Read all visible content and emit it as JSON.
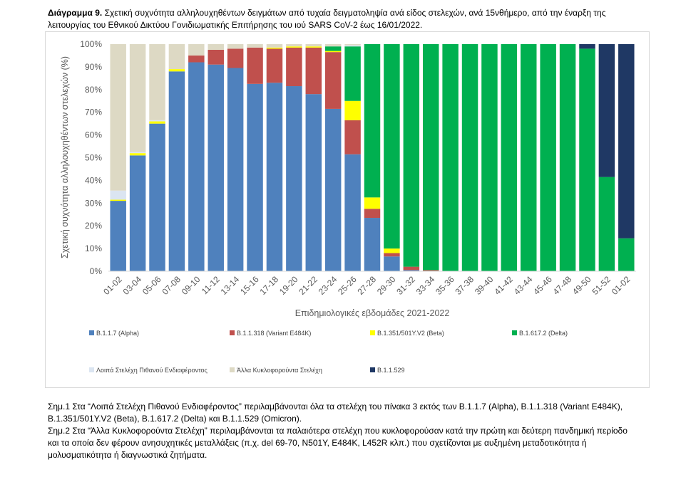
{
  "caption": {
    "label": "Διάγραμμα 9.",
    "text": "Σχετική συχνότητα αλληλουχηθέντων δειγμάτων από τυχαία δειγματοληψία ανά είδος στελεχών, ανά 15νθήμερο, από την έναρξη της λειτουργίας του Εθνικού Δικτύου Γονιδιωματικής Επιτήρησης του ιού SARS CoV-2 έως 16/01/2022."
  },
  "chart_data": {
    "type": "bar",
    "stacked": true,
    "title": "",
    "xlabel": "Επιδημιολογικές εβδομάδες 2021-2022",
    "ylabel": "Σχετική συχνότητα αλληλουχηθέντων στελεχών (%)",
    "ylim": [
      0,
      100
    ],
    "yticks": [
      "0%",
      "10%",
      "20%",
      "30%",
      "40%",
      "50%",
      "60%",
      "70%",
      "80%",
      "90%",
      "100%"
    ],
    "grid": false,
    "legend_position": "bottom",
    "categories": [
      "01-02",
      "03-04",
      "05-06",
      "07-08",
      "09-10",
      "11-12",
      "13-14",
      "15-16",
      "17-18",
      "19-20",
      "21-22",
      "23-24",
      "25-26",
      "27-28",
      "29-30",
      "31-32",
      "33-34",
      "35-36",
      "37-38",
      "39-40",
      "41-42",
      "43-44",
      "45-46",
      "47-48",
      "49-50",
      "51-52",
      "01-02"
    ],
    "series": [
      {
        "name": "B.1.1.7 (Alpha)",
        "color": "#4f81bd",
        "values": [
          31,
          51,
          65,
          88,
          92,
          91,
          89.5,
          82.5,
          83,
          81.5,
          78,
          71.5,
          51.5,
          23.5,
          6.5,
          0.5,
          0,
          0,
          0,
          0,
          0,
          0,
          0,
          0,
          0,
          0,
          0
        ]
      },
      {
        "name": "B.1.1.318 (Variant E484K)",
        "color": "#c0504d",
        "values": [
          0,
          0,
          0,
          0,
          3,
          6.5,
          8.5,
          16,
          15,
          17,
          20.5,
          25,
          15,
          4,
          1.5,
          1.5,
          0.5,
          0,
          0,
          0,
          0,
          0,
          0,
          0,
          0,
          0,
          0
        ]
      },
      {
        "name": "B.1.351/501Y.V2 (Beta)",
        "color": "#ffff00",
        "values": [
          0.5,
          1,
          1,
          1,
          0,
          0,
          0,
          0,
          0.5,
          0.5,
          0.5,
          0.5,
          8.5,
          5,
          2,
          0,
          0,
          0,
          0,
          0,
          0,
          0,
          0,
          0,
          0,
          0,
          0
        ]
      },
      {
        "name": "B.1.617.2 (Delta)",
        "color": "#00b050",
        "values": [
          0,
          0,
          0,
          0,
          0,
          0,
          0,
          0,
          0,
          0,
          0,
          2,
          24,
          67.5,
          90,
          98,
          99.5,
          100,
          100,
          100,
          100,
          100,
          100,
          100,
          98,
          41.5,
          14.5
        ]
      },
      {
        "name": "Λοιπά Στελέχη Πιθανού Ενδιαφέροντος",
        "color": "#dbe5f1",
        "values": [
          4,
          0.5,
          0.5,
          0,
          0,
          0,
          0,
          0,
          0,
          0,
          0,
          0,
          0.5,
          0,
          0,
          0,
          0,
          0,
          0,
          0,
          0,
          0,
          0,
          0,
          0,
          0,
          0
        ]
      },
      {
        "name": "Άλλα Κυκλοφορούντα Στελέχη",
        "color": "#ddd9c4",
        "values": [
          64.5,
          47.5,
          33.5,
          11,
          5,
          2.5,
          2,
          1.5,
          1.5,
          1,
          1,
          1,
          0.5,
          0,
          0,
          0,
          0,
          0,
          0,
          0,
          0,
          0,
          0,
          0,
          0,
          0,
          0
        ]
      },
      {
        "name": "B.1.1.529",
        "color": "#1f3864",
        "values": [
          0,
          0,
          0,
          0,
          0,
          0,
          0,
          0,
          0,
          0,
          0,
          0,
          0,
          0,
          0,
          0,
          0,
          0,
          0,
          0,
          0,
          0,
          0,
          0,
          2,
          58.5,
          85.5
        ]
      }
    ]
  },
  "notes": [
    "Σημ.1 Στα “Λοιπά Στελέχη Πιθανού Ενδιαφέροντος” περιλαμβάνονται όλα τα στελέχη του πίνακα 3 εκτός των B.1.1.7 (Alpha), B.1.1.318 (Variant E484K), B.1.351/501Y.V2 (Beta), B.1.617.2 (Delta) και B.1.1.529 (Omicron).",
    "Σημ.2 Στα “Άλλα Κυκλοφορούντα Στελέχη” περιλαμβάνονται τα παλαιότερα στελέχη που κυκλοφορούσαν κατά την πρώτη και δεύτερη πανδημική περίοδο και τα οποία δεν φέρουν ανησυχητικές μεταλλάξεις (π.χ. del 69-70, N501Y, E484K, L452R κλπ.) που σχετίζονται με αυξημένη μεταδοτικότητα ή μολυσματικότητα ή διαγνωστικά ζητήματα."
  ]
}
